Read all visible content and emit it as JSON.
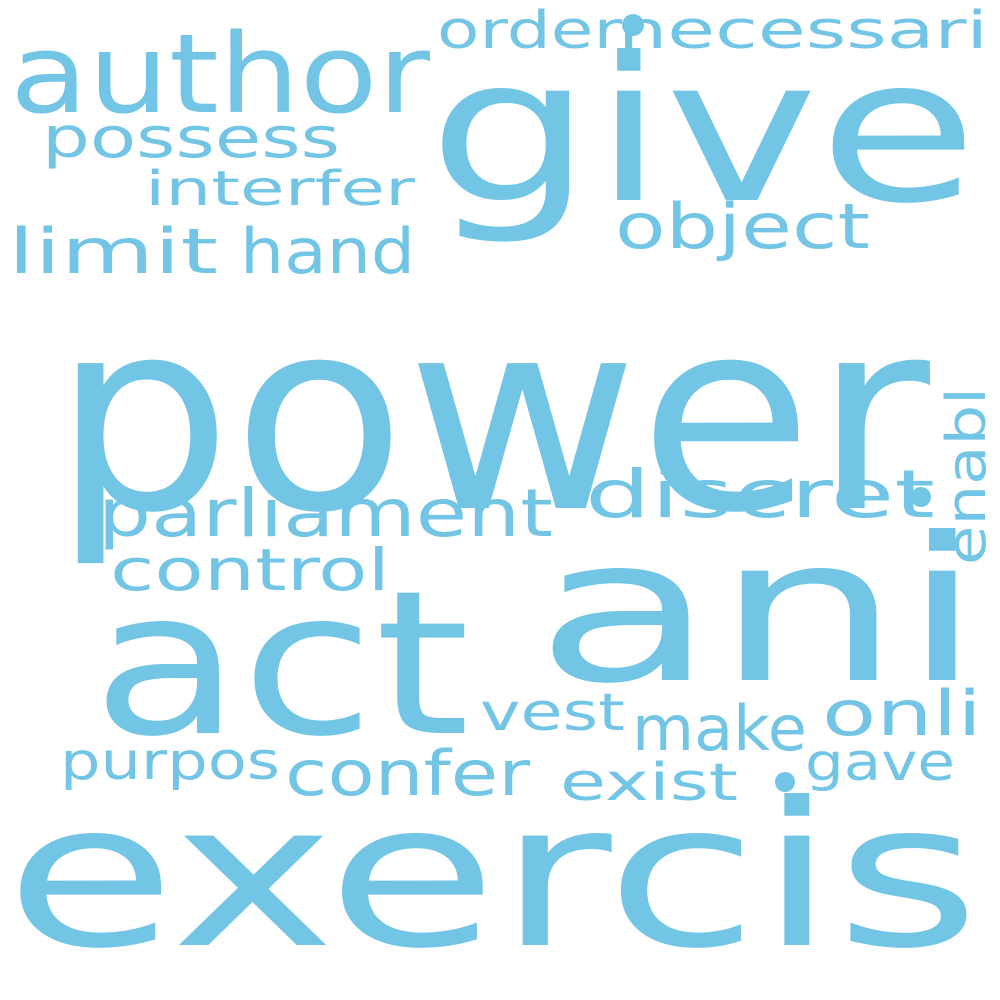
{
  "background": "#ffffff",
  "word_color": "#73c5e5",
  "words": {
    "power": "power",
    "ani": "ani",
    "exercis": "exercis",
    "act": "act",
    "give": "give",
    "author": "author",
    "order": "order",
    "necessari": "necessari",
    "possess": "possess",
    "interfer": "interfer",
    "object": "object",
    "limit": "limit",
    "hand": "hand",
    "parliament": "parliament",
    "discret": "discret",
    "enabl": "enabl",
    "control": "control",
    "vest": "vest",
    "onli": "onli",
    "make": "make",
    "purpos": "purpos",
    "confer": "confer",
    "gave": "gave",
    "exist": "exist"
  }
}
